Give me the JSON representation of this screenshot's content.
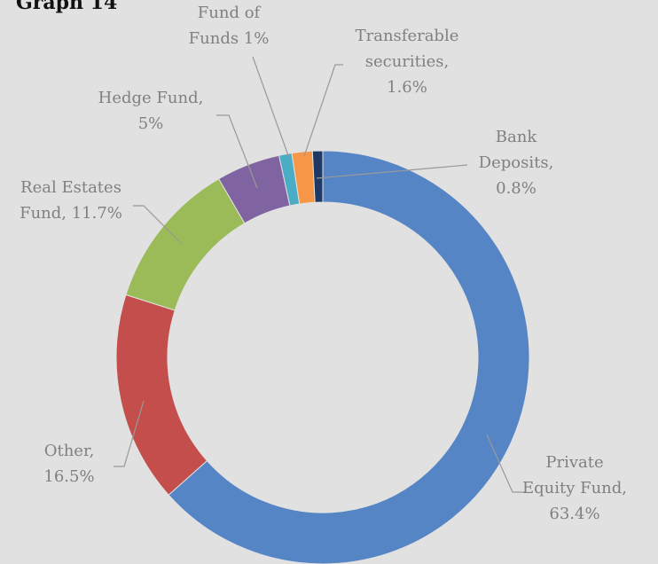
{
  "chart_data": {
    "type": "donut",
    "title": "Graph 14",
    "values": [
      63.4,
      16.5,
      11.7,
      5,
      1,
      1.6,
      0.8
    ],
    "value_labels": [
      [
        "Private",
        "Equity Fund,",
        "63.4%"
      ],
      [
        "Other,",
        "16.5%"
      ],
      [
        "Real Estates",
        "Fund, 11.7%"
      ],
      [
        "Hedge Fund,",
        "5%"
      ],
      [
        "Fund of",
        "Funds 1%"
      ],
      [
        "Transferable",
        "securities,",
        "1.6%"
      ],
      [
        "Bank",
        "Deposits,",
        "0.8%"
      ]
    ],
    "colors": [
      "#5585c5",
      "#c44e4b",
      "#9bbb59",
      "#8064a2",
      "#4bacc6",
      "#f79646",
      "#1f3864"
    ]
  }
}
